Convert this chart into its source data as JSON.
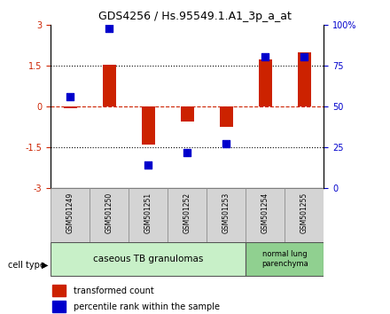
{
  "title": "GDS4256 / Hs.95549.1.A1_3p_a_at",
  "samples": [
    "GSM501249",
    "GSM501250",
    "GSM501251",
    "GSM501252",
    "GSM501253",
    "GSM501254",
    "GSM501255"
  ],
  "red_bars": [
    -0.05,
    1.55,
    -1.4,
    -0.55,
    -0.75,
    1.75,
    2.0
  ],
  "blue_dots": [
    0.37,
    2.87,
    -2.15,
    -1.67,
    -1.35,
    1.83,
    1.85
  ],
  "ylim_left": [
    -3,
    3
  ],
  "yticks_left": [
    -3,
    -1.5,
    0,
    1.5,
    3
  ],
  "ytick_labels_left": [
    "-3",
    "-1.5",
    "0",
    "1.5",
    "3"
  ],
  "yticks_right": [
    0,
    25,
    50,
    75,
    100
  ],
  "ytick_labels_right": [
    "0",
    "25",
    "50",
    "75",
    "100%"
  ],
  "cell_type_groups": [
    {
      "label": "caseous TB granulomas",
      "indices": [
        0,
        1,
        2,
        3,
        4
      ],
      "color": "#c8f0c8"
    },
    {
      "label": "normal lung\nparenchyma",
      "indices": [
        5,
        6
      ],
      "color": "#90d090"
    }
  ],
  "bar_color": "#cc2200",
  "dot_color": "#0000cc",
  "zero_line_color": "#cc2200",
  "grid_color": "#000000",
  "bg_color": "#ffffff",
  "bar_width": 0.35,
  "sample_box_color": "#d4d4d4",
  "sample_box_edge": "#888888"
}
